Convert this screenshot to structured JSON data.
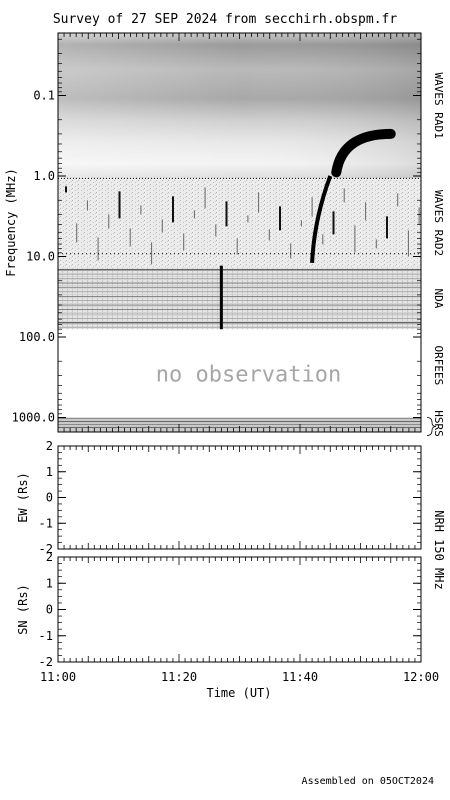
{
  "title": "Survey of 27 SEP 2024 from secchirh.obspm.fr",
  "footer": "Assembled on 05OCT2024",
  "x_axis": {
    "label": "Time (UT)",
    "ticks": [
      "11:00",
      "11:20",
      "11:40",
      "12:00"
    ]
  },
  "chart_data": [
    {
      "type": "heatmap",
      "name": "dynamic-spectrum",
      "ylabel": "Frequency (MHz)",
      "yscale": "log",
      "yaxis_inverted": true,
      "ylim": [
        0.02,
        1800
      ],
      "xlim": [
        "11:00",
        "12:00"
      ],
      "ytick_labels": [
        "0.1",
        "1.0",
        "10.0",
        "100.0",
        "1000.0"
      ],
      "ytick_values": [
        0.1,
        1,
        10,
        100,
        1000
      ],
      "bands": [
        {
          "label": "WAVES RAD1",
          "f_min": 0.02,
          "f_max": 1.07
        },
        {
          "label": "WAVES RAD2",
          "f_min": 1.07,
          "f_max": 13.8
        },
        {
          "label": "NDA",
          "f_min": 13.8,
          "f_max": 80
        },
        {
          "label": "ORFEES",
          "f_min": 80,
          "f_max": 1000,
          "status": "no observation"
        },
        {
          "label": "HSRS",
          "f_min": 1000,
          "f_max": 1800
        }
      ],
      "annotation": "no observation",
      "bursts": [
        {
          "start": "11:42",
          "end": "11:45",
          "f_high": 1.0,
          "f_low": 12.0,
          "kind": "drifting"
        },
        {
          "start": "11:46",
          "end": "11:55",
          "f_high": 0.3,
          "f_low": 0.9,
          "kind": "drifting"
        },
        {
          "start": "11:27",
          "end": "11:28",
          "f_high": 13,
          "f_low": 80,
          "kind": "fast"
        }
      ]
    },
    {
      "type": "scatter",
      "name": "NRH EW",
      "ylabel": "EW (Rs)",
      "ylim": [
        -2,
        2
      ],
      "ytick_labels": [
        "-2",
        "-1",
        "0",
        "1",
        "2"
      ],
      "series": []
    },
    {
      "type": "scatter",
      "name": "NRH SN",
      "ylabel": "SN (Rs)",
      "ylim": [
        -2,
        2
      ],
      "ytick_labels": [
        "-2",
        "-1",
        "0",
        "1",
        "2"
      ],
      "series": []
    }
  ],
  "nrh_label": "NRH 150 MHz"
}
